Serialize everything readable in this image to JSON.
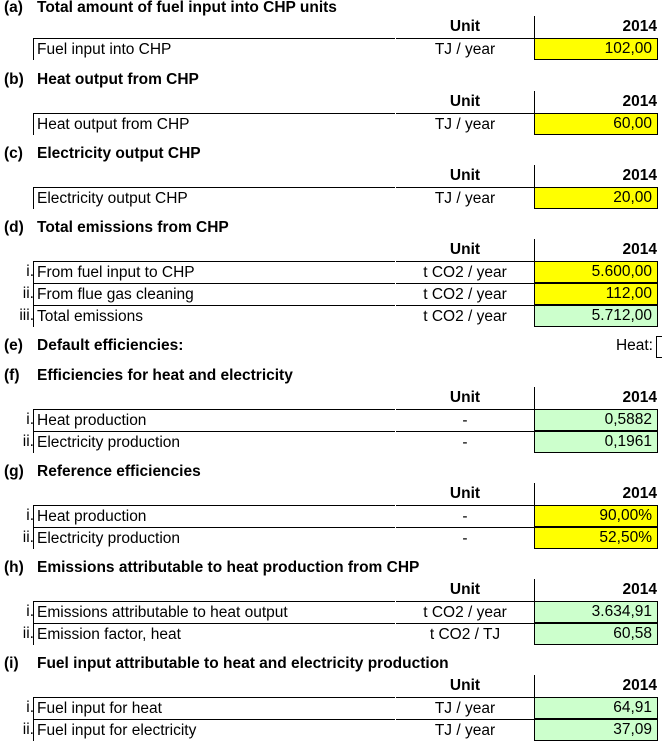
{
  "header_labels": {
    "unit": "Unit",
    "year": "2014"
  },
  "sections": [
    {
      "letter": "(a)",
      "title": "Total amount of fuel input into CHP units",
      "rows": [
        {
          "idx": "",
          "label": "Fuel input into CHP",
          "unit": "TJ / year",
          "value": "102,00",
          "fill": "yellow"
        }
      ]
    },
    {
      "letter": "(b)",
      "title": "Heat output from CHP",
      "rows": [
        {
          "idx": "",
          "label": "Heat output from CHP",
          "unit": "TJ / year",
          "value": "60,00",
          "fill": "yellow"
        }
      ]
    },
    {
      "letter": "(c)",
      "title": "Electricity output CHP",
      "rows": [
        {
          "idx": "",
          "label": "Electricity output CHP",
          "unit": "TJ / year",
          "value": "20,00",
          "fill": "yellow"
        }
      ]
    },
    {
      "letter": "(d)",
      "title": "Total emissions from CHP",
      "rows": [
        {
          "idx": "i.",
          "label": "From fuel input to CHP",
          "unit": "t CO2 / year",
          "value": "5.600,00",
          "fill": "yellow"
        },
        {
          "idx": "ii.",
          "label": "From flue gas cleaning",
          "unit": "t CO2 / year",
          "value": "112,00",
          "fill": "yellow"
        },
        {
          "idx": "iii.",
          "label": "Total emissions",
          "unit": "t CO2 / year",
          "value": "5.712,00",
          "fill": "green"
        }
      ]
    },
    {
      "letter": "(e)",
      "title": "Default efficiencies:",
      "heat_label": "Heat:"
    },
    {
      "letter": "(f)",
      "title": "Efficiencies for heat and electricity",
      "rows": [
        {
          "idx": "i.",
          "label": "Heat production",
          "unit": "-",
          "value": "0,5882",
          "fill": "green"
        },
        {
          "idx": "ii.",
          "label": "Electricity production",
          "unit": "-",
          "value": "0,1961",
          "fill": "green"
        }
      ]
    },
    {
      "letter": "(g)",
      "title": "Reference efficiencies",
      "rows": [
        {
          "idx": "i.",
          "label": "Heat production",
          "unit": "-",
          "value": "90,00%",
          "fill": "yellow"
        },
        {
          "idx": "ii.",
          "label": "Electricity production",
          "unit": "-",
          "value": "52,50%",
          "fill": "yellow"
        }
      ]
    },
    {
      "letter": "(h)",
      "title": "Emissions attributable to heat production from CHP",
      "rows": [
        {
          "idx": "i.",
          "label": "Emissions attributable to heat output",
          "unit": "t CO2 / year",
          "value": "3.634,91",
          "fill": "green"
        },
        {
          "idx": "ii.",
          "label": "Emission factor, heat",
          "unit": "t CO2 / TJ",
          "value": "60,58",
          "fill": "green"
        }
      ]
    },
    {
      "letter": "(i)",
      "title": "Fuel input attributable to heat and electricity production",
      "rows": [
        {
          "idx": "i.",
          "label": "Fuel input for heat",
          "unit": "TJ / year",
          "value": "64,91",
          "fill": "green"
        },
        {
          "idx": "ii.",
          "label": "Fuel input for electricity",
          "unit": "TJ / year",
          "value": "37,09",
          "fill": "green"
        }
      ]
    }
  ]
}
